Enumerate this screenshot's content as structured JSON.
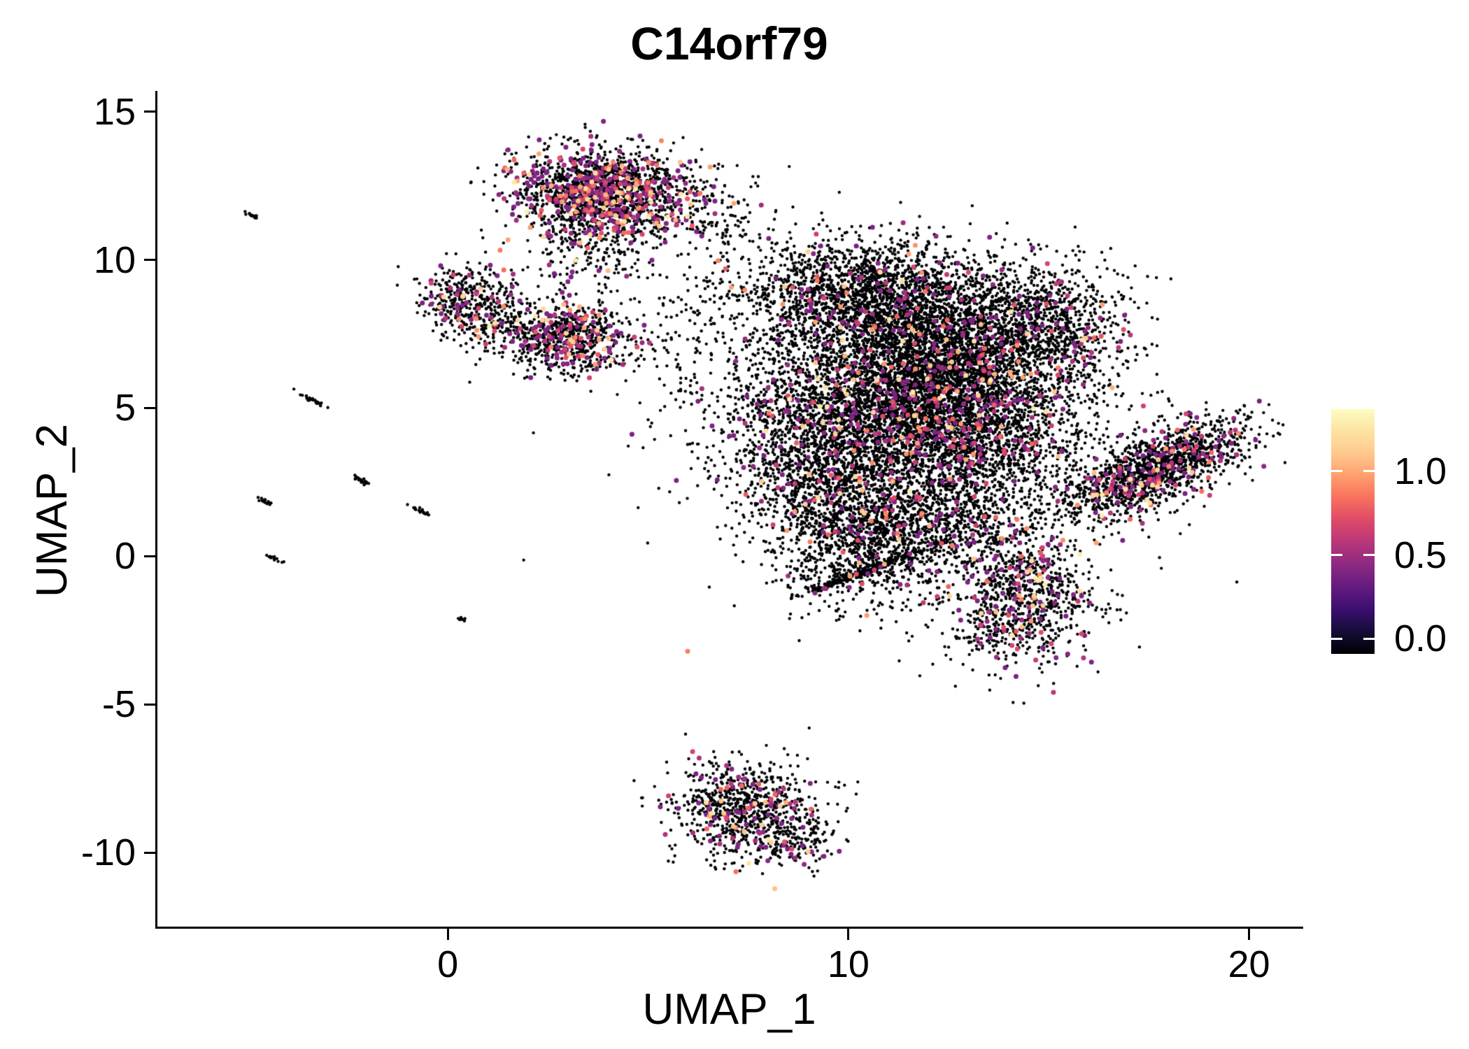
{
  "title": "C14orf79",
  "plot": {
    "background": "#ffffff",
    "axis_color": "#000000",
    "zero_expression_color": "#000004",
    "x": {
      "label": "UMAP_1",
      "ticks": [
        "0",
        "10",
        "20"
      ],
      "tick_values": [
        0,
        10,
        20
      ],
      "range": [
        -7.25,
        21.3
      ]
    },
    "y": {
      "label": "UMAP_2",
      "ticks": [
        "-10",
        "-5",
        "0",
        "5",
        "10",
        "15"
      ],
      "tick_values": [
        -10,
        -5,
        0,
        5,
        10,
        15
      ],
      "range": [
        -12.5,
        15.7
      ]
    }
  },
  "colorbar": {
    "position": "right",
    "tick_labels": [
      "1.0",
      "0.5",
      "0.0"
    ],
    "tick_values": [
      1.0,
      0.5,
      0.0
    ],
    "domain": [
      -0.09,
      1.37
    ],
    "gradient": [
      "#000004",
      "#140e36",
      "#3b0f70",
      "#641a80",
      "#8c2981",
      "#b73779",
      "#de4968",
      "#f7705c",
      "#fe9f6d",
      "#fec98d",
      "#fde2a3",
      "#fcfdbf"
    ]
  },
  "chart_data": {
    "type": "scatter",
    "title": "C14orf79",
    "xlabel": "UMAP_1",
    "ylabel": "UMAP_2",
    "xlim": [
      -7.25,
      21.3
    ],
    "ylim": [
      -12.5,
      15.7
    ],
    "grid": false,
    "legend_position": "right",
    "color_scale": "magma",
    "displayed_value_breaks": [
      0.0,
      0.5,
      1.0
    ],
    "seed": 1234,
    "dot_radius_px": {
      "zero": 2.2,
      "expressing": 3.5
    },
    "clusters": [
      {
        "name": "top-blob",
        "cx": 3.9,
        "cy": 12.3,
        "sx": 1.15,
        "sy": 0.72,
        "rot": -8,
        "n": 1700,
        "expr": 0.22
      },
      {
        "name": "top-blob-tail",
        "cx": 3.4,
        "cy": 10.6,
        "sx": 0.8,
        "sy": 0.9,
        "rot": 0,
        "n": 260,
        "expr": 0.08
      },
      {
        "name": "top-right-sparse",
        "cx": 6.8,
        "cy": 11.4,
        "sx": 0.7,
        "sy": 1.0,
        "rot": 0,
        "n": 130,
        "expr": 0.03
      },
      {
        "name": "left-small",
        "cx": 0.45,
        "cy": 8.6,
        "sx": 0.6,
        "sy": 0.62,
        "rot": 0,
        "n": 380,
        "expr": 0.12
      },
      {
        "name": "left-small-tail",
        "cx": 1.2,
        "cy": 7.9,
        "sx": 0.5,
        "sy": 0.4,
        "rot": 0,
        "n": 90,
        "expr": 0.06
      },
      {
        "name": "mid-left-blob",
        "cx": 2.95,
        "cy": 7.4,
        "sx": 0.78,
        "sy": 0.62,
        "rot": -10,
        "n": 750,
        "expr": 0.16
      },
      {
        "name": "bridge-sparse",
        "cx": 5.6,
        "cy": 8.3,
        "sx": 1.3,
        "sy": 1.2,
        "rot": 0,
        "n": 110,
        "expr": 0.03
      },
      {
        "name": "main-top",
        "cx": 10.4,
        "cy": 8.8,
        "sx": 1.5,
        "sy": 0.95,
        "rot": 0,
        "n": 1900,
        "expr": 0.045
      },
      {
        "name": "main-upper-mid",
        "cx": 12.4,
        "cy": 7.0,
        "sx": 1.6,
        "sy": 1.15,
        "rot": 0,
        "n": 2400,
        "expr": 0.06
      },
      {
        "name": "main-center",
        "cx": 10.4,
        "cy": 5.0,
        "sx": 1.7,
        "sy": 1.25,
        "rot": 0,
        "n": 2400,
        "expr": 0.06
      },
      {
        "name": "main-right",
        "cx": 13.0,
        "cy": 4.3,
        "sx": 1.35,
        "sy": 1.2,
        "rot": 0,
        "n": 1900,
        "expr": 0.07
      },
      {
        "name": "main-left-low",
        "cx": 9.3,
        "cy": 2.7,
        "sx": 1.0,
        "sy": 1.0,
        "rot": 0,
        "n": 800,
        "expr": 0.04
      },
      {
        "name": "main-lower-left",
        "cx": 10.2,
        "cy": 0.4,
        "sx": 1.05,
        "sy": 1.1,
        "rot": 20,
        "n": 950,
        "expr": 0.05
      },
      {
        "name": "main-lower-mid",
        "cx": 12.3,
        "cy": 1.4,
        "sx": 1.2,
        "sy": 1.0,
        "rot": 0,
        "n": 850,
        "expr": 0.05
      },
      {
        "name": "right-upper-lobe",
        "cx": 14.9,
        "cy": 7.9,
        "sx": 1.0,
        "sy": 1.1,
        "rot": 30,
        "n": 850,
        "expr": 0.06
      },
      {
        "name": "lower-right-lobe",
        "cx": 14.3,
        "cy": -1.4,
        "sx": 0.95,
        "sy": 1.15,
        "rot": -15,
        "n": 1000,
        "expr": 0.13
      },
      {
        "name": "main-sparse-halo",
        "cx": 11.5,
        "cy": 4.5,
        "sx": 3.0,
        "sy": 2.6,
        "rot": 0,
        "n": 700,
        "expr": 0.03
      },
      {
        "name": "main-streak-1",
        "cx": 10.8,
        "cy": -0.3,
        "sx": 0.9,
        "sy": 0.06,
        "rot": 25,
        "n": 150,
        "expr": 0.03
      },
      {
        "name": "main-streak-2",
        "cx": 9.7,
        "cy": -0.9,
        "sx": 0.6,
        "sy": 0.05,
        "rot": 25,
        "n": 90,
        "expr": 0.03
      },
      {
        "name": "right-band",
        "cx": 17.6,
        "cy": 2.9,
        "sx": 1.35,
        "sy": 0.55,
        "rot": 33,
        "n": 1500,
        "expr": 0.11
      },
      {
        "name": "bottom-cluster",
        "cx": 7.4,
        "cy": -8.5,
        "sx": 0.95,
        "sy": 0.8,
        "rot": -15,
        "n": 850,
        "expr": 0.11
      },
      {
        "name": "bottom-tail",
        "cx": 8.8,
        "cy": -9.6,
        "sx": 0.45,
        "sy": 0.5,
        "rot": -30,
        "n": 120,
        "expr": 0.1
      },
      {
        "name": "stray-mid",
        "cx": 6.5,
        "cy": 6.2,
        "sx": 1.2,
        "sy": 1.5,
        "rot": 0,
        "n": 40,
        "expr": 0.04
      },
      {
        "name": "streak-1",
        "cx": -4.9,
        "cy": 11.5,
        "sx": 0.12,
        "sy": 0.03,
        "rot": -35,
        "n": 14,
        "expr": 0
      },
      {
        "name": "streak-2",
        "cx": -3.35,
        "cy": 5.25,
        "sx": 0.22,
        "sy": 0.035,
        "rot": -32,
        "n": 26,
        "expr": 0
      },
      {
        "name": "streak-3",
        "cx": -2.15,
        "cy": 2.55,
        "sx": 0.16,
        "sy": 0.035,
        "rot": -32,
        "n": 20,
        "expr": 0
      },
      {
        "name": "streak-4",
        "cx": -4.55,
        "cy": 1.85,
        "sx": 0.14,
        "sy": 0.03,
        "rot": -32,
        "n": 16,
        "expr": 0
      },
      {
        "name": "streak-5",
        "cx": -0.7,
        "cy": 1.55,
        "sx": 0.16,
        "sy": 0.035,
        "rot": -35,
        "n": 18,
        "expr": 0
      },
      {
        "name": "streak-6",
        "cx": -4.3,
        "cy": -0.1,
        "sx": 0.12,
        "sy": 0.03,
        "rot": -30,
        "n": 12,
        "expr": 0
      },
      {
        "name": "streak-7",
        "cx": 0.35,
        "cy": -2.1,
        "sx": 0.07,
        "sy": 0.03,
        "rot": -30,
        "n": 7,
        "expr": 0
      }
    ]
  }
}
